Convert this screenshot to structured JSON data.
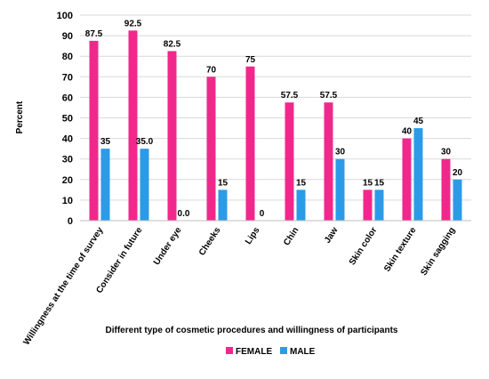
{
  "chart_data": {
    "type": "bar",
    "title": "",
    "xlabel": "Different type of cosmetic procedures and willingness of participants",
    "ylabel": "Percent",
    "ylim": [
      0,
      100
    ],
    "yticks": [
      0,
      10,
      20,
      30,
      40,
      50,
      60,
      70,
      80,
      90,
      100
    ],
    "grid": true,
    "legend": "bottom",
    "categories": [
      "Willingness at the time of survey",
      "Consider in future",
      "Under eye",
      "Cheeks",
      "Lips",
      "Chin",
      "Jaw",
      "Skin color",
      "Skin texture",
      "Skin sagging"
    ],
    "series": [
      {
        "name": "FEMALE",
        "color": "#f0288c",
        "values": [
          87.5,
          92.5,
          82.5,
          70,
          75,
          57.5,
          57.5,
          15,
          40,
          30
        ],
        "labels": [
          "87.5",
          "92.5",
          "82.5",
          "70",
          "75",
          "57.5",
          "57.5",
          "15",
          "40",
          "30"
        ]
      },
      {
        "name": "MALE",
        "color": "#2b9be8",
        "values": [
          35,
          35.0,
          0.0,
          15,
          0,
          15,
          30,
          15,
          45,
          20
        ],
        "labels": [
          "35",
          "35.0",
          "0.0",
          "15",
          "0",
          "15",
          "30",
          "15",
          "45",
          "20"
        ]
      }
    ]
  }
}
